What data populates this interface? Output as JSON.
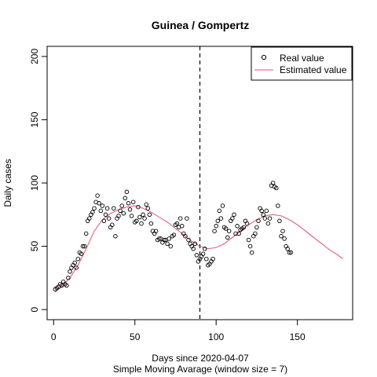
{
  "chart_data": {
    "type": "scatter",
    "title": "Guinea / Gompertz",
    "xlabel": "Days since 2020-04-07",
    "sublabel": "Simple Moving Avarage (window size = 7)",
    "ylabel": "Daily cases",
    "xlim": [
      -4,
      184
    ],
    "ylim": [
      -8,
      208
    ],
    "xticks": [
      "0",
      "50",
      "100",
      "150"
    ],
    "xtick_values": [
      0,
      50,
      100,
      150
    ],
    "yticks": [
      "0",
      "50",
      "100",
      "150",
      "200"
    ],
    "ytick_values": [
      0,
      50,
      100,
      150,
      200
    ],
    "vline_x": 90,
    "legend": {
      "position": "top-right",
      "entries": [
        "Real value",
        "Estimated value"
      ]
    },
    "colors": {
      "points": "#000000",
      "curve": "#DF536B",
      "vline": "#000000"
    },
    "series": [
      {
        "name": "Real value",
        "x": [
          1,
          2,
          3,
          4,
          5,
          6,
          7,
          8,
          9,
          10,
          11,
          12,
          13,
          14,
          15,
          16,
          17,
          18,
          19,
          20,
          21,
          22,
          23,
          24,
          25,
          26,
          27,
          28,
          29,
          30,
          31,
          32,
          33,
          34,
          35,
          36,
          37,
          38,
          39,
          40,
          41,
          42,
          43,
          44,
          45,
          46,
          47,
          48,
          49,
          50,
          51,
          52,
          53,
          54,
          55,
          56,
          57,
          58,
          59,
          60,
          61,
          62,
          63,
          64,
          65,
          66,
          67,
          68,
          69,
          70,
          71,
          72,
          73,
          74,
          75,
          76,
          77,
          78,
          79,
          80,
          81,
          82,
          83,
          84,
          85,
          86,
          87,
          88,
          89,
          90,
          91,
          92,
          93,
          94,
          95,
          96,
          97,
          98,
          99,
          100,
          101,
          102,
          103,
          104,
          105,
          106,
          107,
          108,
          109,
          110,
          111,
          112,
          113,
          114,
          115,
          116,
          117,
          118,
          119,
          120,
          121,
          122,
          123,
          124,
          125,
          126,
          127,
          128,
          129,
          130,
          131,
          132,
          133,
          134,
          135,
          136,
          137,
          138,
          139,
          140,
          141,
          142,
          143,
          144,
          145,
          146
        ],
        "y": [
          16,
          17,
          18,
          20,
          19,
          22,
          20,
          19,
          25,
          30,
          33,
          35,
          37,
          33,
          40,
          45,
          44,
          50,
          50,
          60,
          70,
          72,
          75,
          77,
          80,
          85,
          90,
          84,
          78,
          82,
          70,
          75,
          80,
          72,
          65,
          67,
          80,
          58,
          72,
          74,
          78,
          82,
          76,
          88,
          93,
          84,
          79,
          74,
          85,
          69,
          70,
          81,
          73,
          68,
          75,
          72,
          83,
          80,
          75,
          68,
          62,
          60,
          62,
          55,
          56,
          56,
          53,
          55,
          55,
          52,
          56,
          50,
          58,
          59,
          67,
          68,
          65,
          72,
          66,
          60,
          58,
          72,
          55,
          52,
          50,
          48,
          52,
          43,
          38,
          40,
          42,
          44,
          48,
          40,
          35,
          36,
          38,
          40,
          62,
          66,
          70,
          78,
          72,
          82,
          65,
          64,
          57,
          62,
          70,
          72,
          75,
          60,
          66,
          60,
          63,
          64,
          65,
          70,
          68,
          55,
          50,
          45,
          58,
          60,
          65,
          70,
          80,
          78,
          75,
          72,
          78,
          68,
          72,
          98,
          100,
          97,
          96,
          82,
          70,
          58,
          62,
          56,
          50,
          48,
          45,
          45
        ]
      },
      {
        "name": "Estimated value",
        "x": [
          1,
          5,
          10,
          15,
          20,
          25,
          30,
          35,
          40,
          45,
          50,
          55,
          60,
          65,
          70,
          75,
          80,
          85,
          90,
          95,
          100,
          105,
          110,
          115,
          120,
          125,
          130,
          135,
          140,
          145,
          150,
          155,
          160,
          165,
          170,
          175,
          178
        ],
        "y": [
          14,
          18,
          25,
          35,
          48,
          62,
          71,
          76,
          79,
          81,
          82,
          80,
          77,
          73,
          69,
          64,
          59,
          54,
          50,
          48,
          49,
          52,
          57,
          62,
          67,
          71,
          74,
          75,
          74,
          71,
          67,
          62,
          57,
          52,
          47,
          43,
          40
        ]
      }
    ]
  }
}
